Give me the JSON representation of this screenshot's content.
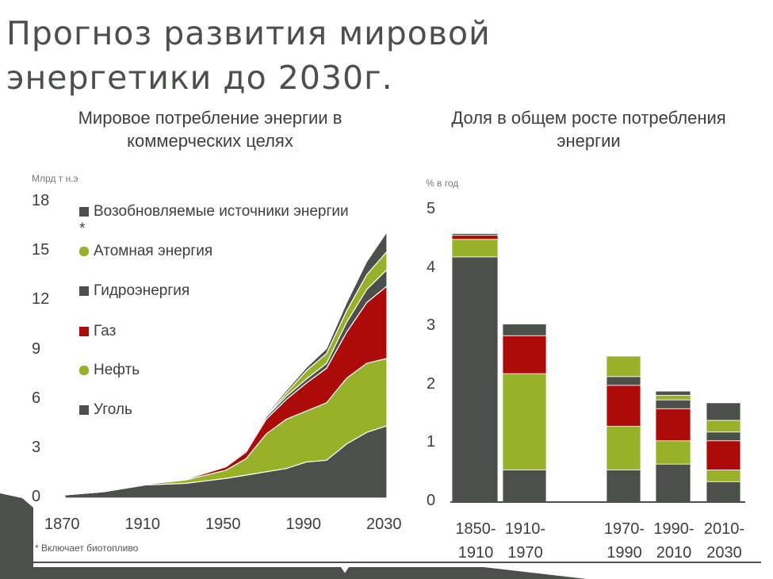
{
  "title_line1": "Прогноз развития мировой",
  "title_line2": "энергетики до 2030г.",
  "footnote": "* Включает биотопливо",
  "colors": {
    "coal": "#4b504b",
    "oil": "#97b228",
    "gas": "#ad0a0a",
    "hydro": "#4b504b",
    "nuclear": "#97b228",
    "renewables": "#4b504b"
  },
  "chart_data": [
    {
      "type": "area",
      "title_line1": "Мировое потребление энергии в",
      "title_line2": "коммерческих целях",
      "ylabel": "Млрд т н.э",
      "ylim": [
        0,
        18
      ],
      "yticks": [
        "0",
        "3",
        "6",
        "9",
        "12",
        "15",
        "18"
      ],
      "xticks": [
        "1870",
        "1910",
        "1950",
        "1990",
        "2030"
      ],
      "xlim": [
        1870,
        2030
      ],
      "stacked": true,
      "legend": [
        "Возобновляемые источники энергии *",
        "Атомная энергия",
        "Гидроэнергия",
        "Газ",
        "Нефть",
        "Уголь"
      ],
      "x": [
        1870,
        1890,
        1910,
        1930,
        1950,
        1960,
        1970,
        1980,
        1990,
        2000,
        2010,
        2020,
        2030
      ],
      "series": [
        {
          "name": "Уголь",
          "values": [
            0.2,
            0.4,
            0.8,
            0.9,
            1.2,
            1.4,
            1.6,
            1.8,
            2.2,
            2.3,
            3.3,
            4.0,
            4.4
          ]
        },
        {
          "name": "Нефть",
          "values": [
            0,
            0,
            0.05,
            0.2,
            0.5,
            1.0,
            2.3,
            3.0,
            3.1,
            3.5,
            4.0,
            4.2,
            4.1
          ]
        },
        {
          "name": "Газ",
          "values": [
            0,
            0,
            0.02,
            0.05,
            0.2,
            0.4,
            0.9,
            1.2,
            1.7,
            2.1,
            2.8,
            3.7,
            4.4
          ]
        },
        {
          "name": "Гидроэнергия",
          "values": [
            0,
            0,
            0.01,
            0.03,
            0.05,
            0.1,
            0.15,
            0.2,
            0.25,
            0.3,
            0.6,
            0.8,
            1.0
          ]
        },
        {
          "name": "Атомная энергия",
          "values": [
            0,
            0,
            0,
            0,
            0,
            0.01,
            0.02,
            0.2,
            0.5,
            0.6,
            0.7,
            0.9,
            1.1
          ]
        },
        {
          "name": "Возобновляемые источники энергии *",
          "values": [
            0,
            0,
            0,
            0,
            0.02,
            0.05,
            0.1,
            0.15,
            0.2,
            0.3,
            0.5,
            0.8,
            1.2
          ]
        }
      ]
    },
    {
      "type": "bar",
      "stacked": true,
      "title_line1": "Доля в общем росте потребления",
      "title_line2": "энергии",
      "ylabel": "% в год",
      "ylim": [
        0,
        5
      ],
      "yticks": [
        "0",
        "1",
        "2",
        "3",
        "4",
        "5"
      ],
      "categories": [
        [
          "1850-",
          "1910"
        ],
        [
          "1910-",
          "1970"
        ],
        [
          "1970-",
          "1990"
        ],
        [
          "1990-",
          "2010"
        ],
        [
          "2010-",
          "2030"
        ]
      ],
      "series": [
        {
          "name": "Уголь",
          "values": [
            4.2,
            0.55,
            0.55,
            0.65,
            0.35
          ]
        },
        {
          "name": "Нефть",
          "values": [
            0.3,
            1.65,
            0.75,
            0.4,
            0.2
          ]
        },
        {
          "name": "Газ",
          "values": [
            0.07,
            0.65,
            0.7,
            0.55,
            0.5
          ]
        },
        {
          "name": "Гидроэнергия",
          "values": [
            0.03,
            0.2,
            0.15,
            0.15,
            0.15
          ]
        },
        {
          "name": "Атомная энергия",
          "values": [
            0,
            0,
            0.35,
            0.08,
            0.2
          ]
        },
        {
          "name": "Возобновляемые источники энергии *",
          "values": [
            0,
            0,
            0,
            0.07,
            0.3
          ]
        }
      ]
    }
  ]
}
